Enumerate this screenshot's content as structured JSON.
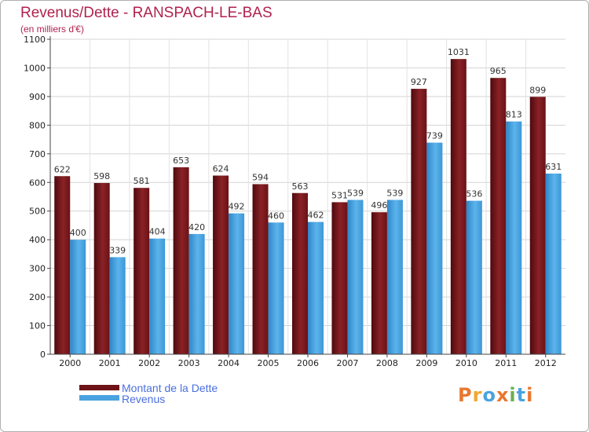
{
  "title": "Revenus/Dette - RANSPACH-LE-BAS",
  "subtitle": "(en milliers d'€)",
  "logo_text": "Proxiti",
  "colors": {
    "dette": "#6e1418",
    "revenus": "#4aa3e0",
    "title": "#b0224f",
    "legend_text": "#4a6fe0"
  },
  "chart_data": {
    "type": "bar",
    "title": "Revenus/Dette - RANSPACH-LE-BAS",
    "subtitle": "(en milliers d'€)",
    "categories": [
      "2000",
      "2001",
      "2002",
      "2003",
      "2004",
      "2005",
      "2006",
      "2007",
      "2008",
      "2009",
      "2010",
      "2011",
      "2012"
    ],
    "series": [
      {
        "name": "Montant de la Dette",
        "values": [
          622,
          598,
          581,
          653,
          624,
          594,
          563,
          531,
          496,
          927,
          1031,
          965,
          899
        ]
      },
      {
        "name": "Revenus",
        "values": [
          400,
          339,
          404,
          420,
          492,
          460,
          462,
          539,
          539,
          739,
          536,
          813,
          631
        ]
      }
    ],
    "yticks": [
      0,
      100,
      200,
      300,
      400,
      500,
      600,
      700,
      800,
      900,
      1000,
      1100
    ],
    "ylim": [
      0,
      1100
    ],
    "grid": true,
    "legend_position": "bottom-left"
  }
}
